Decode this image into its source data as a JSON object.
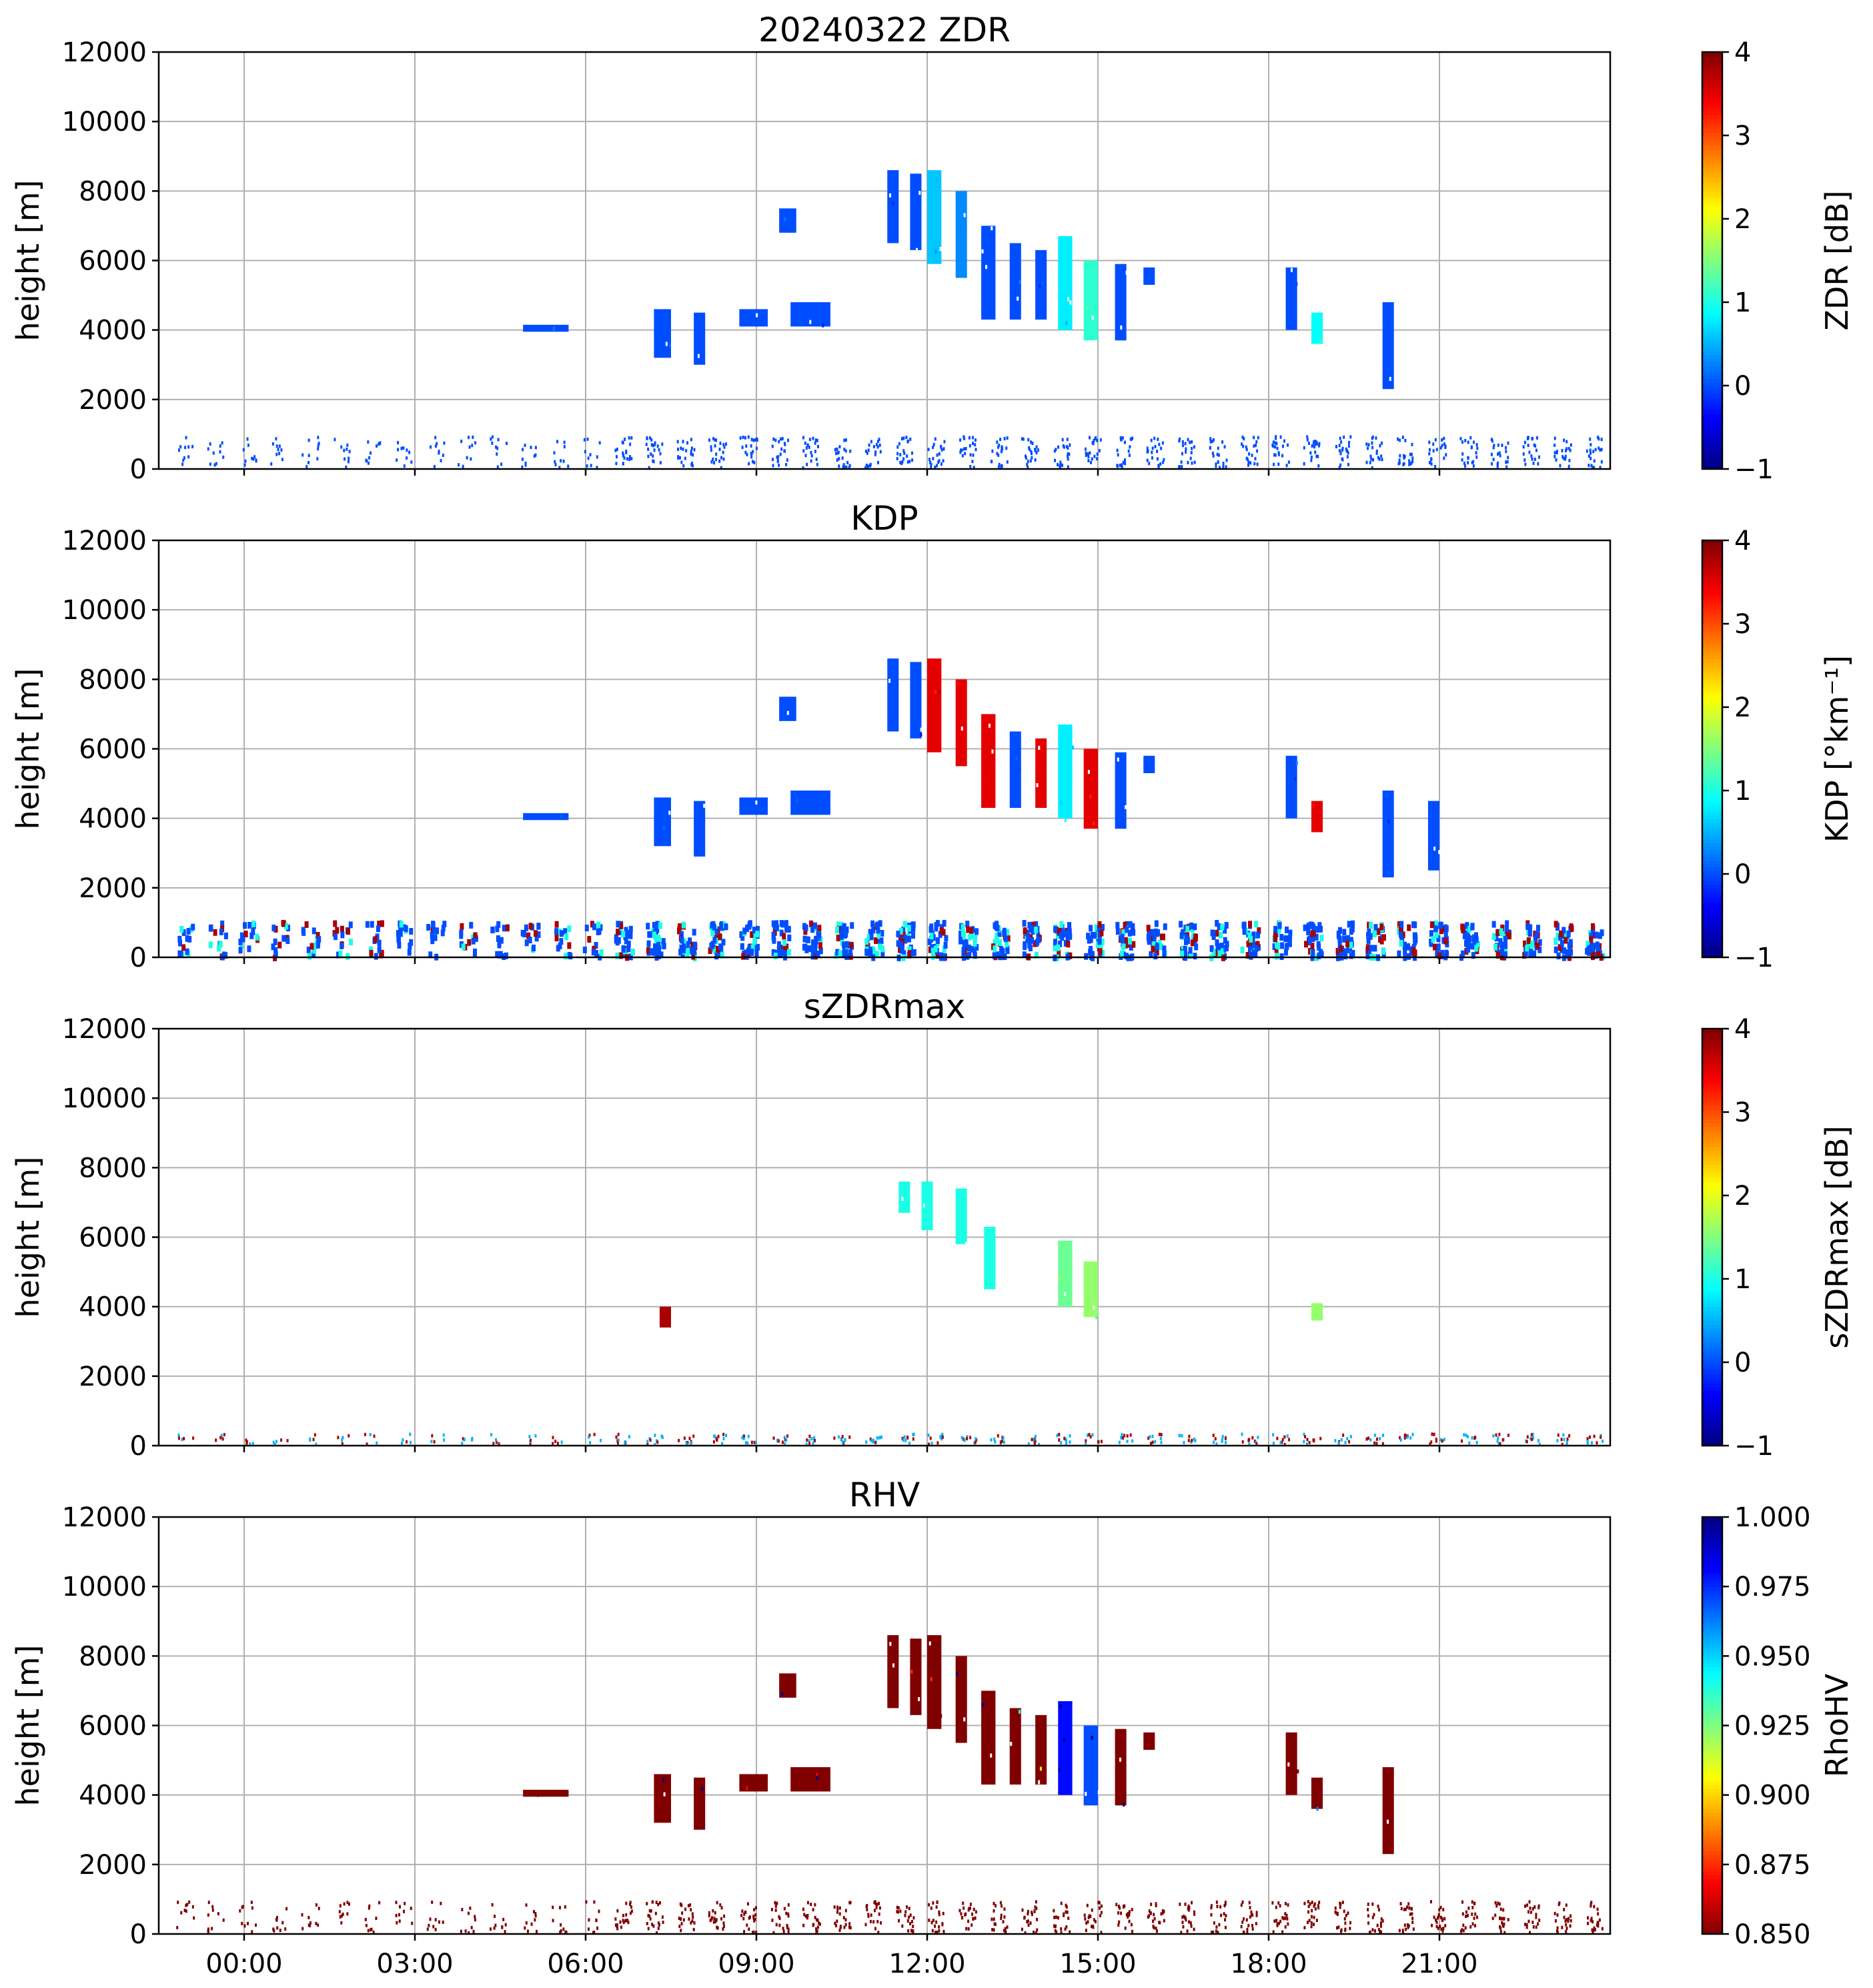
{
  "figure": {
    "x_axis": {
      "range_hours": [
        -1.5,
        24.0
      ],
      "tick_hours": [
        0,
        3,
        6,
        9,
        12,
        15,
        18,
        21
      ],
      "tick_labels": [
        "00:00",
        "03:00",
        "06:00",
        "09:00",
        "12:00",
        "15:00",
        "18:00",
        "21:00"
      ]
    },
    "y_axis": {
      "range": [
        0,
        12000
      ],
      "ticks": [
        0,
        2000,
        4000,
        6000,
        8000,
        10000,
        12000
      ],
      "label": "height [m]"
    },
    "grid": true
  },
  "chart_data": [
    {
      "type": "heatmap",
      "title": "20240322 ZDR",
      "ylabel": "height [m]",
      "ylim": [
        0,
        12000
      ],
      "colorbar": {
        "label": "ZDR [dB]",
        "range": [
          -1,
          4
        ],
        "ticks": [
          -1,
          0,
          1,
          2,
          3,
          4
        ],
        "tick_labels": [
          "−1",
          "0",
          "1",
          "2",
          "3",
          "4"
        ],
        "colormap": "jet"
      },
      "dominant_color": "#1f5cff",
      "regions": [
        {
          "t0": 4.9,
          "t1": 5.7,
          "h0": 3950,
          "h1": 4150,
          "v": 0.0
        },
        {
          "t0": 7.2,
          "t1": 7.5,
          "h0": 3200,
          "h1": 4600,
          "v": 0.0
        },
        {
          "t0": 7.9,
          "t1": 8.1,
          "h0": 3000,
          "h1": 4500,
          "v": 0.0
        },
        {
          "t0": 8.7,
          "t1": 9.2,
          "h0": 4100,
          "h1": 4600,
          "v": 0.0
        },
        {
          "t0": 9.6,
          "t1": 10.3,
          "h0": 4100,
          "h1": 4800,
          "v": 0.0
        },
        {
          "t0": 9.4,
          "t1": 9.7,
          "h0": 6800,
          "h1": 7500,
          "v": 0.0
        },
        {
          "t0": 11.3,
          "t1": 11.5,
          "h0": 6500,
          "h1": 8600,
          "v": 0.0
        },
        {
          "t0": 11.7,
          "t1": 11.9,
          "h0": 6300,
          "h1": 8500,
          "v": 0.0
        },
        {
          "t0": 12.0,
          "t1": 12.25,
          "h0": 5900,
          "h1": 8600,
          "v": 0.6
        },
        {
          "t0": 12.5,
          "t1": 12.7,
          "h0": 5500,
          "h1": 8000,
          "v": 0.3
        },
        {
          "t0": 12.95,
          "t1": 13.2,
          "h0": 4300,
          "h1": 7000,
          "v": 0.0
        },
        {
          "t0": 13.45,
          "t1": 13.65,
          "h0": 4300,
          "h1": 6500,
          "v": 0.0
        },
        {
          "t0": 13.9,
          "t1": 14.1,
          "h0": 4300,
          "h1": 6300,
          "v": 0.0
        },
        {
          "t0": 14.3,
          "t1": 14.55,
          "h0": 4000,
          "h1": 6700,
          "v": 0.8
        },
        {
          "t0": 14.75,
          "t1": 15.0,
          "h0": 3700,
          "h1": 6000,
          "v": 1.1
        },
        {
          "t0": 15.3,
          "t1": 15.5,
          "h0": 3700,
          "h1": 5900,
          "v": 0.0
        },
        {
          "t0": 15.8,
          "t1": 16.0,
          "h0": 5300,
          "h1": 5800,
          "v": 0.0
        },
        {
          "t0": 18.3,
          "t1": 18.5,
          "h0": 4000,
          "h1": 5800,
          "v": 0.0
        },
        {
          "t0": 18.75,
          "t1": 18.95,
          "h0": 3600,
          "h1": 4500,
          "v": 0.9
        },
        {
          "t0": 20.0,
          "t1": 20.2,
          "h0": 2300,
          "h1": 4800,
          "v": 0.0
        }
      ],
      "near_surface": {
        "h0": 0,
        "h1": 900,
        "density": 0.55
      }
    },
    {
      "type": "heatmap",
      "title": "KDP",
      "ylabel": "height [m]",
      "ylim": [
        0,
        12000
      ],
      "colorbar": {
        "label": "KDP [°km⁻¹]",
        "range": [
          -1,
          4
        ],
        "ticks": [
          -1,
          0,
          1,
          2,
          3,
          4
        ],
        "tick_labels": [
          "−1",
          "0",
          "1",
          "2",
          "3",
          "4"
        ],
        "colormap": "jet"
      },
      "dominant_color": "#1f5cff",
      "regions": [
        {
          "t0": 4.9,
          "t1": 5.7,
          "h0": 3950,
          "h1": 4150,
          "v": 0.0
        },
        {
          "t0": 7.2,
          "t1": 7.5,
          "h0": 3200,
          "h1": 4600,
          "v": 0.0
        },
        {
          "t0": 7.9,
          "t1": 8.1,
          "h0": 2900,
          "h1": 4500,
          "v": 0.0
        },
        {
          "t0": 8.7,
          "t1": 9.2,
          "h0": 4100,
          "h1": 4600,
          "v": 0.0
        },
        {
          "t0": 9.6,
          "t1": 10.3,
          "h0": 4100,
          "h1": 4800,
          "v": 0.0
        },
        {
          "t0": 9.4,
          "t1": 9.7,
          "h0": 6800,
          "h1": 7500,
          "v": 0.0
        },
        {
          "t0": 11.3,
          "t1": 11.5,
          "h0": 6500,
          "h1": 8600,
          "v": 0.0
        },
        {
          "t0": 11.7,
          "t1": 11.9,
          "h0": 6300,
          "h1": 8500,
          "v": 0.0
        },
        {
          "t0": 12.0,
          "t1": 12.25,
          "h0": 5900,
          "h1": 8600,
          "v": 3.5
        },
        {
          "t0": 12.5,
          "t1": 12.7,
          "h0": 5500,
          "h1": 8000,
          "v": 3.5
        },
        {
          "t0": 12.95,
          "t1": 13.2,
          "h0": 4300,
          "h1": 7000,
          "v": 3.5
        },
        {
          "t0": 13.45,
          "t1": 13.65,
          "h0": 4300,
          "h1": 6500,
          "v": 0.0
        },
        {
          "t0": 13.9,
          "t1": 14.1,
          "h0": 4300,
          "h1": 6300,
          "v": 3.5
        },
        {
          "t0": 14.3,
          "t1": 14.55,
          "h0": 4000,
          "h1": 6700,
          "v": 0.8
        },
        {
          "t0": 14.75,
          "t1": 15.0,
          "h0": 3700,
          "h1": 6000,
          "v": 3.5
        },
        {
          "t0": 15.3,
          "t1": 15.5,
          "h0": 3700,
          "h1": 5900,
          "v": 0.0
        },
        {
          "t0": 15.8,
          "t1": 16.0,
          "h0": 5300,
          "h1": 5800,
          "v": 0.0
        },
        {
          "t0": 18.3,
          "t1": 18.5,
          "h0": 4000,
          "h1": 5800,
          "v": 0.0
        },
        {
          "t0": 18.75,
          "t1": 18.95,
          "h0": 3600,
          "h1": 4500,
          "v": 3.5
        },
        {
          "t0": 20.0,
          "t1": 20.2,
          "h0": 2300,
          "h1": 4800,
          "v": 0.0
        },
        {
          "t0": 20.8,
          "t1": 21.0,
          "h0": 2500,
          "h1": 4500,
          "v": 0.0
        }
      ],
      "near_surface": {
        "h0": 0,
        "h1": 1000,
        "density": 0.85
      }
    },
    {
      "type": "heatmap",
      "title": "sZDRmax",
      "ylabel": "height [m]",
      "ylim": [
        0,
        12000
      ],
      "colorbar": {
        "label": "sZDRmax [dB]",
        "range": [
          -1,
          4
        ],
        "ticks": [
          -1,
          0,
          1,
          2,
          3,
          4
        ],
        "tick_labels": [
          "−1",
          "0",
          "1",
          "2",
          "3",
          "4"
        ],
        "colormap": "jet"
      },
      "dominant_color": "#3fd8e8",
      "regions": [
        {
          "t0": 11.5,
          "t1": 11.7,
          "h0": 6700,
          "h1": 7600,
          "v": 1.0
        },
        {
          "t0": 11.9,
          "t1": 12.1,
          "h0": 6200,
          "h1": 7600,
          "v": 1.0
        },
        {
          "t0": 12.5,
          "t1": 12.7,
          "h0": 5800,
          "h1": 7400,
          "v": 1.0
        },
        {
          "t0": 13.0,
          "t1": 13.2,
          "h0": 4500,
          "h1": 6300,
          "v": 1.0
        },
        {
          "t0": 14.3,
          "t1": 14.55,
          "h0": 4000,
          "h1": 5900,
          "v": 1.4
        },
        {
          "t0": 14.75,
          "t1": 15.0,
          "h0": 3700,
          "h1": 5300,
          "v": 1.6
        },
        {
          "t0": 18.75,
          "t1": 18.95,
          "h0": 3600,
          "h1": 4100,
          "v": 1.6
        },
        {
          "t0": 7.3,
          "t1": 7.5,
          "h0": 3400,
          "h1": 4000,
          "v": 3.8
        }
      ],
      "near_surface": {
        "h0": 0,
        "h1": 300,
        "density": 0.25
      }
    },
    {
      "type": "heatmap",
      "title": "RHV",
      "ylabel": "height [m]",
      "ylim": [
        0,
        12000
      ],
      "colorbar": {
        "label": "RhoHV",
        "range": [
          0.85,
          1.0
        ],
        "ticks": [
          0.85,
          0.875,
          0.9,
          0.925,
          0.95,
          0.975,
          1.0
        ],
        "tick_labels": [
          "0.850",
          "0.875",
          "0.900",
          "0.925",
          "0.950",
          "0.975",
          "1.000"
        ],
        "colormap": "jet_r"
      },
      "dominant_color": "#800000",
      "regions": [
        {
          "t0": 4.9,
          "t1": 5.7,
          "h0": 3950,
          "h1": 4150,
          "v": 0.85
        },
        {
          "t0": 7.2,
          "t1": 7.5,
          "h0": 3200,
          "h1": 4600,
          "v": 0.85
        },
        {
          "t0": 7.9,
          "t1": 8.1,
          "h0": 3000,
          "h1": 4500,
          "v": 0.85
        },
        {
          "t0": 8.7,
          "t1": 9.2,
          "h0": 4100,
          "h1": 4600,
          "v": 0.85
        },
        {
          "t0": 9.6,
          "t1": 10.3,
          "h0": 4100,
          "h1": 4800,
          "v": 0.85
        },
        {
          "t0": 9.4,
          "t1": 9.7,
          "h0": 6800,
          "h1": 7500,
          "v": 0.85
        },
        {
          "t0": 11.3,
          "t1": 11.5,
          "h0": 6500,
          "h1": 8600,
          "v": 0.85
        },
        {
          "t0": 11.7,
          "t1": 11.9,
          "h0": 6300,
          "h1": 8500,
          "v": 0.85
        },
        {
          "t0": 12.0,
          "t1": 12.25,
          "h0": 5900,
          "h1": 8600,
          "v": 0.85
        },
        {
          "t0": 12.5,
          "t1": 12.7,
          "h0": 5500,
          "h1": 8000,
          "v": 0.85
        },
        {
          "t0": 12.95,
          "t1": 13.2,
          "h0": 4300,
          "h1": 7000,
          "v": 0.85
        },
        {
          "t0": 13.45,
          "t1": 13.65,
          "h0": 4300,
          "h1": 6500,
          "v": 0.85
        },
        {
          "t0": 13.9,
          "t1": 14.1,
          "h0": 4300,
          "h1": 6300,
          "v": 0.85
        },
        {
          "t0": 14.3,
          "t1": 14.55,
          "h0": 4000,
          "h1": 6700,
          "v": 0.98
        },
        {
          "t0": 14.75,
          "t1": 15.0,
          "h0": 3700,
          "h1": 6000,
          "v": 0.97
        },
        {
          "t0": 15.3,
          "t1": 15.5,
          "h0": 3700,
          "h1": 5900,
          "v": 0.85
        },
        {
          "t0": 15.8,
          "t1": 16.0,
          "h0": 5300,
          "h1": 5800,
          "v": 0.85
        },
        {
          "t0": 18.3,
          "t1": 18.5,
          "h0": 4000,
          "h1": 5800,
          "v": 0.85
        },
        {
          "t0": 18.75,
          "t1": 18.95,
          "h0": 3600,
          "h1": 4500,
          "v": 0.85
        },
        {
          "t0": 20.0,
          "t1": 20.2,
          "h0": 2300,
          "h1": 4800,
          "v": 0.85
        }
      ],
      "near_surface": {
        "h0": 0,
        "h1": 900,
        "density": 0.55
      }
    }
  ]
}
